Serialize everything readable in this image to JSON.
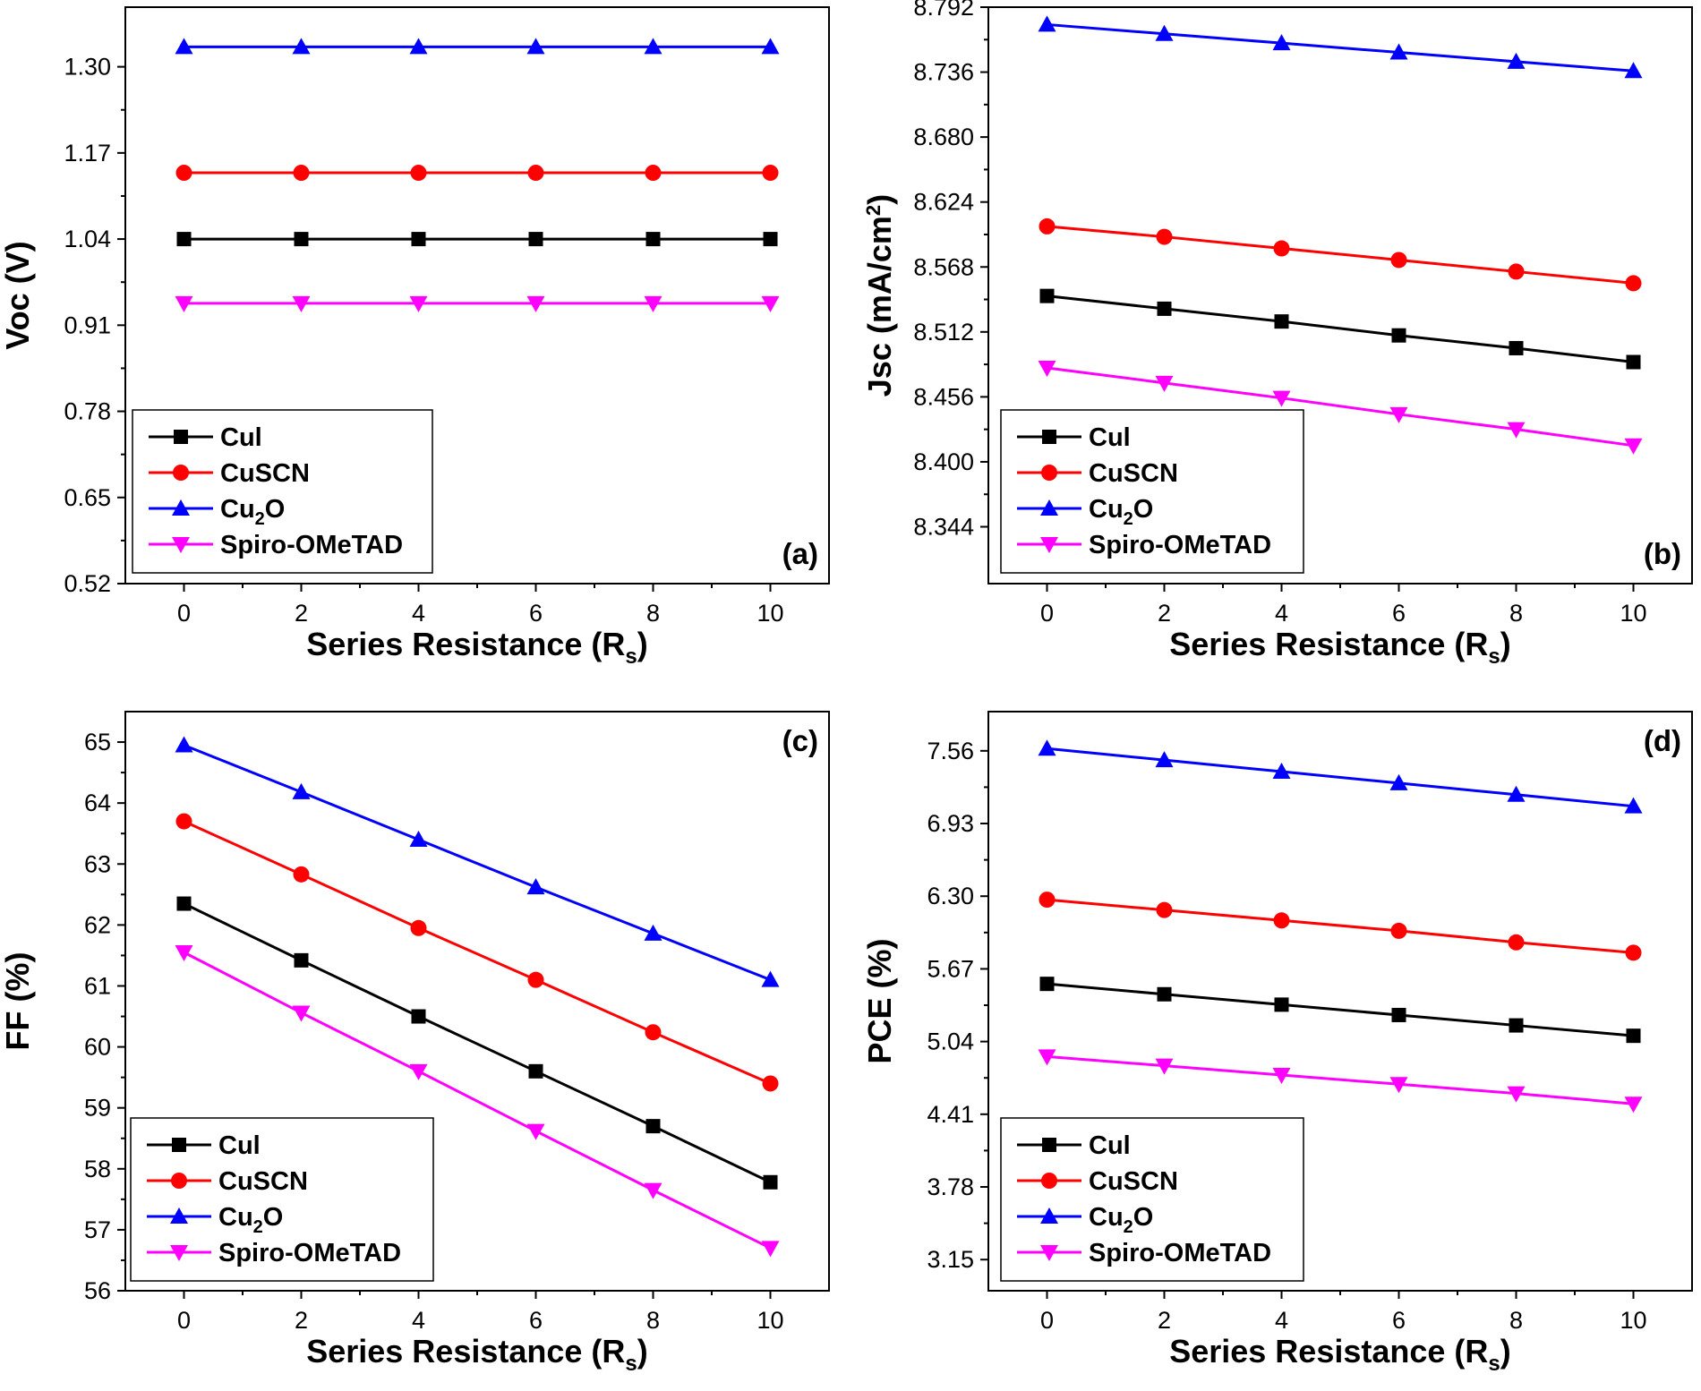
{
  "colors": {
    "CuI": "#000000",
    "CuSCN": "#ff0000",
    "Cu2O": "#0000ff",
    "Spiro-OMeTAD": "#ff00ff"
  },
  "chart_data": [
    {
      "type": "line",
      "panel_label": "(a)",
      "xlabel": "Series Resistance (R",
      "xlabel_sub": "s",
      "xlabel_close": ")",
      "ylabel": "Voc (V)",
      "ylabel_sup": "",
      "ylabel_close": "",
      "x": [
        0,
        2,
        4,
        6,
        8,
        10
      ],
      "x_ticks": [
        "0",
        "2",
        "4",
        "6",
        "8",
        "10"
      ],
      "xlim": [
        -1,
        11
      ],
      "y_ticks": [
        "0.52",
        "0.65",
        "0.78",
        "0.91",
        "1.04",
        "1.17",
        "1.30"
      ],
      "ylim": [
        0.52,
        1.39
      ],
      "legend_position": "bottom-left",
      "series": [
        {
          "name": "CuI",
          "label_main": "Cul",
          "label_sub": "",
          "label_rest": "",
          "color": "#000000",
          "marker": "square",
          "values": [
            1.04,
            1.04,
            1.04,
            1.04,
            1.04,
            1.04
          ]
        },
        {
          "name": "CuSCN",
          "label_main": "CuSCN",
          "label_sub": "",
          "label_rest": "",
          "color": "#ff0000",
          "marker": "circle",
          "values": [
            1.14,
            1.14,
            1.14,
            1.14,
            1.14,
            1.14
          ]
        },
        {
          "name": "Cu2O",
          "label_main": "Cu",
          "label_sub": "2",
          "label_rest": "O",
          "color": "#0000ff",
          "marker": "triangle-up",
          "values": [
            1.33,
            1.33,
            1.33,
            1.33,
            1.33,
            1.33
          ]
        },
        {
          "name": "Spiro-OMeTAD",
          "label_main": "Spiro-OMeTAD",
          "label_sub": "",
          "label_rest": "",
          "color": "#ff00ff",
          "marker": "triangle-down",
          "values": [
            0.943,
            0.943,
            0.943,
            0.943,
            0.943,
            0.943
          ]
        }
      ]
    },
    {
      "type": "line",
      "panel_label": "(b)",
      "xlabel": "Series Resistance (R",
      "xlabel_sub": "s",
      "xlabel_close": ")",
      "ylabel": "Jsc (mA/cm",
      "ylabel_sup": "2",
      "ylabel_close": ")",
      "x": [
        0,
        2,
        4,
        6,
        8,
        10
      ],
      "x_ticks": [
        "0",
        "2",
        "4",
        "6",
        "8",
        "10"
      ],
      "xlim": [
        -1,
        11
      ],
      "y_ticks": [
        "8.344",
        "8.400",
        "8.456",
        "8.512",
        "8.568",
        "8.624",
        "8.680",
        "8.736",
        "8.792"
      ],
      "ylim": [
        8.295,
        8.792
      ],
      "legend_position": "bottom-left",
      "series": [
        {
          "name": "CuI",
          "label_main": "Cul",
          "label_sub": "",
          "label_rest": "",
          "color": "#000000",
          "marker": "square",
          "values": [
            8.543,
            8.532,
            8.521,
            8.509,
            8.498,
            8.486
          ]
        },
        {
          "name": "CuSCN",
          "label_main": "CuSCN",
          "label_sub": "",
          "label_rest": "",
          "color": "#ff0000",
          "marker": "circle",
          "values": [
            8.603,
            8.594,
            8.584,
            8.574,
            8.564,
            8.554
          ]
        },
        {
          "name": "Cu2O",
          "label_main": "Cu",
          "label_sub": "2",
          "label_rest": "O",
          "color": "#0000ff",
          "marker": "triangle-up",
          "values": [
            8.777,
            8.769,
            8.761,
            8.753,
            8.745,
            8.737
          ]
        },
        {
          "name": "Spiro-OMeTAD",
          "label_main": "Spiro-OMeTAD",
          "label_sub": "",
          "label_rest": "",
          "color": "#ff00ff",
          "marker": "triangle-down",
          "values": [
            8.481,
            8.468,
            8.455,
            8.441,
            8.428,
            8.414
          ]
        }
      ]
    },
    {
      "type": "line",
      "panel_label": "(c)",
      "xlabel": "Series Resistance (R",
      "xlabel_sub": "s",
      "xlabel_close": ")",
      "ylabel": "FF (%)",
      "ylabel_sup": "",
      "ylabel_close": "",
      "x": [
        0,
        2,
        4,
        6,
        8,
        10
      ],
      "x_ticks": [
        "0",
        "2",
        "4",
        "6",
        "8",
        "10"
      ],
      "xlim": [
        -1,
        11
      ],
      "y_ticks": [
        "56",
        "57",
        "58",
        "59",
        "60",
        "61",
        "62",
        "63",
        "64",
        "65"
      ],
      "ylim": [
        56,
        65.5
      ],
      "legend_position": "bottom-left",
      "series": [
        {
          "name": "CuI",
          "label_main": "Cul",
          "label_sub": "",
          "label_rest": "",
          "color": "#000000",
          "marker": "square",
          "values": [
            62.35,
            61.42,
            60.5,
            59.6,
            58.7,
            57.78
          ]
        },
        {
          "name": "CuSCN",
          "label_main": "CuSCN",
          "label_sub": "",
          "label_rest": "",
          "color": "#ff0000",
          "marker": "circle",
          "values": [
            63.7,
            62.83,
            61.95,
            61.1,
            60.24,
            59.4
          ]
        },
        {
          "name": "Cu2O",
          "label_main": "Cu",
          "label_sub": "2",
          "label_rest": "O",
          "color": "#0000ff",
          "marker": "triangle-up",
          "values": [
            64.95,
            64.18,
            63.4,
            62.62,
            61.86,
            61.1
          ]
        },
        {
          "name": "Spiro-OMeTAD",
          "label_main": "Spiro-OMeTAD",
          "label_sub": "",
          "label_rest": "",
          "color": "#ff00ff",
          "marker": "triangle-down",
          "values": [
            61.55,
            60.56,
            59.6,
            58.62,
            57.65,
            56.7
          ]
        }
      ]
    },
    {
      "type": "line",
      "panel_label": "(d)",
      "xlabel": "Series Resistance (R",
      "xlabel_sub": "s",
      "xlabel_close": ")",
      "ylabel": "PCE (%)",
      "ylabel_sup": "",
      "ylabel_close": "",
      "x": [
        0,
        2,
        4,
        6,
        8,
        10
      ],
      "x_ticks": [
        "0",
        "2",
        "4",
        "6",
        "8",
        "10"
      ],
      "xlim": [
        -1,
        11
      ],
      "y_ticks": [
        "3.15",
        "3.78",
        "4.41",
        "5.04",
        "5.67",
        "6.30",
        "6.93",
        "7.56"
      ],
      "ylim": [
        2.88,
        7.9
      ],
      "legend_position": "bottom-left",
      "series": [
        {
          "name": "CuI",
          "label_main": "Cul",
          "label_sub": "",
          "label_rest": "",
          "color": "#000000",
          "marker": "square",
          "values": [
            5.54,
            5.45,
            5.36,
            5.27,
            5.18,
            5.09
          ]
        },
        {
          "name": "CuSCN",
          "label_main": "CuSCN",
          "label_sub": "",
          "label_rest": "",
          "color": "#ff0000",
          "marker": "circle",
          "values": [
            6.27,
            6.18,
            6.09,
            6.0,
            5.9,
            5.81
          ]
        },
        {
          "name": "Cu2O",
          "label_main": "Cu",
          "label_sub": "2",
          "label_rest": "O",
          "color": "#0000ff",
          "marker": "triangle-up",
          "values": [
            7.58,
            7.48,
            7.38,
            7.28,
            7.18,
            7.08
          ]
        },
        {
          "name": "Spiro-OMeTAD",
          "label_main": "Spiro-OMeTAD",
          "label_sub": "",
          "label_rest": "",
          "color": "#ff00ff",
          "marker": "triangle-down",
          "values": [
            4.91,
            4.83,
            4.75,
            4.67,
            4.59,
            4.5
          ]
        }
      ]
    }
  ]
}
